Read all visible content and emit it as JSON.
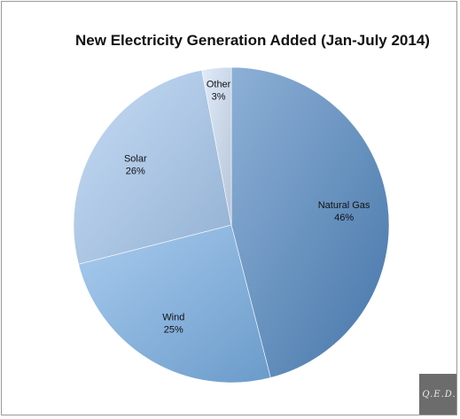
{
  "chart_data": {
    "type": "pie",
    "title": "New Electricity Generation Added (Jan-July 2014)",
    "categories": [
      "Natural Gas",
      "Wind",
      "Solar",
      "Other"
    ],
    "values": [
      46,
      25,
      26,
      3
    ],
    "value_labels": [
      "46%",
      "25%",
      "26%",
      "3%"
    ],
    "colors": [
      "#4f86c0",
      "#7ab0e6",
      "#a7c9f0",
      "#cfe0f6"
    ],
    "legend": "none",
    "start_angle_deg": 0,
    "direction": "clockwise"
  },
  "watermark": {
    "text": "Q.E.D."
  }
}
